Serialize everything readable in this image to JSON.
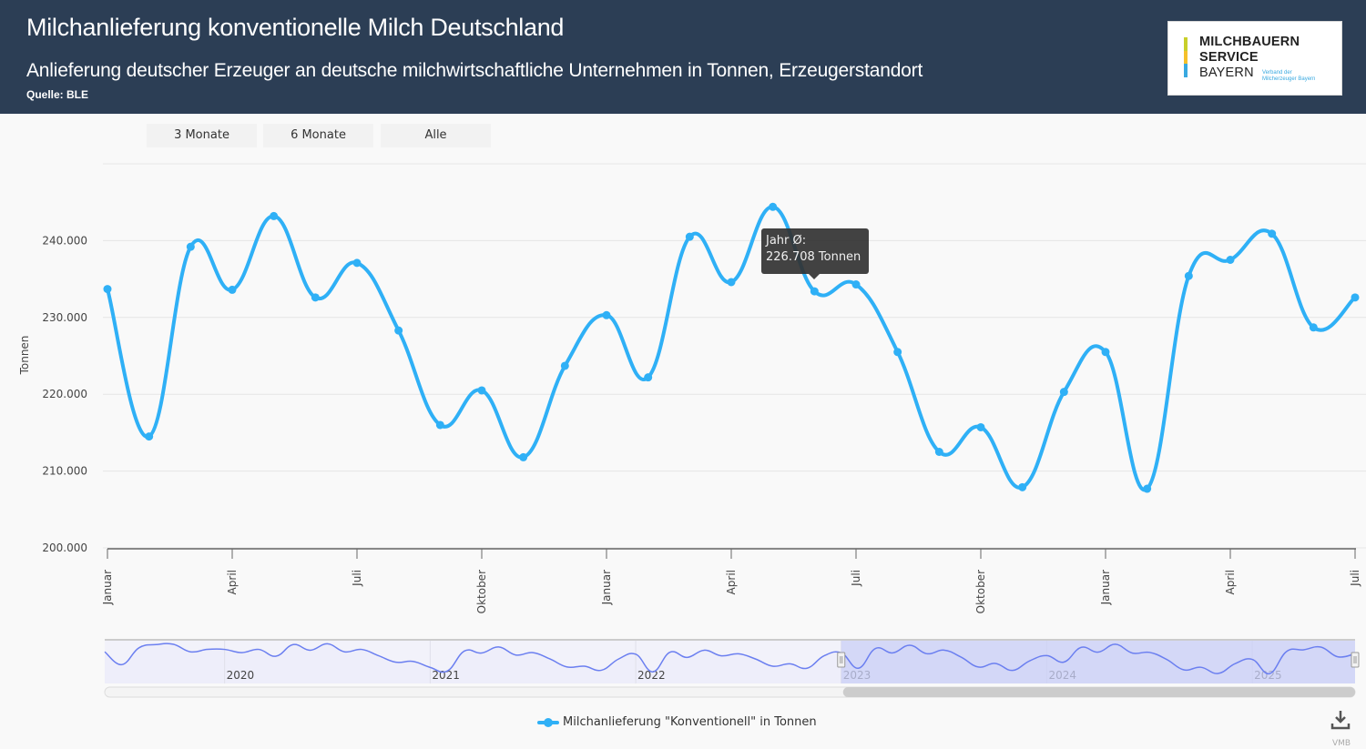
{
  "header": {
    "title": "Milchanlieferung konventionelle Milch Deutschland",
    "subtitle": "Anlieferung deutscher Erzeuger an deutsche milchwirtschaftliche Unternehmen in Tonnen, Erzeugerstandort",
    "source": "Quelle: BLE"
  },
  "logo": {
    "lines": [
      "MILCHBAUERN",
      "SERVICE",
      "BAYERN"
    ],
    "tagline": [
      "Verband der",
      "Milcherzeuger Bayern"
    ],
    "colors": [
      "#c8cf2a",
      "#f5c02a",
      "#39a9e0"
    ]
  },
  "range_selector": {
    "buttons": [
      "3 Monate",
      "6 Monate",
      "Alle"
    ]
  },
  "tooltip": {
    "line1": "Jahr Ø:",
    "line2": "226.708 Tonnen"
  },
  "legend": {
    "label": "Milchanlieferung \"Konventionell\" in Tonnen"
  },
  "export": {
    "icon": "download-icon",
    "credit": "VMB"
  },
  "colors": {
    "series": "#2fb0f6",
    "navigator_line": "#6b7ff0",
    "navigator_mask": "#c9cff6",
    "header_bg": "#2c3e55"
  },
  "chart_data": {
    "type": "line",
    "title": "Milchanlieferung konventionelle Milch Deutschland",
    "ylabel": "Tonnen",
    "ylim": [
      200000,
      250000
    ],
    "yticks": [
      200000,
      210000,
      220000,
      230000,
      240000
    ],
    "ytick_labels": [
      "200.000",
      "210.000",
      "220.000",
      "230.000",
      "240.000"
    ],
    "grid": true,
    "legend_position": "bottom-center",
    "x_range": [
      "2023-01",
      "2025-07"
    ],
    "xticks": [
      {
        "month": "2023-01",
        "label": "Januar"
      },
      {
        "month": "2023-04",
        "label": "April"
      },
      {
        "month": "2023-07",
        "label": "Juli"
      },
      {
        "month": "2023-10",
        "label": "Oktober"
      },
      {
        "month": "2024-01",
        "label": "Januar"
      },
      {
        "month": "2024-04",
        "label": "April"
      },
      {
        "month": "2024-07",
        "label": "Juli"
      },
      {
        "month": "2024-10",
        "label": "Oktober"
      },
      {
        "month": "2025-01",
        "label": "Januar"
      },
      {
        "month": "2025-04",
        "label": "April"
      },
      {
        "month": "2025-07",
        "label": "Juli"
      }
    ],
    "series": [
      {
        "name": "Milchanlieferung \"Konventionell\" in Tonnen",
        "x": [
          "2023-01",
          "2023-02",
          "2023-03",
          "2023-04",
          "2023-05",
          "2023-06",
          "2023-07",
          "2023-08",
          "2023-09",
          "2023-10",
          "2023-11",
          "2023-12",
          "2024-01",
          "2024-02",
          "2024-03",
          "2024-04",
          "2024-05",
          "2024-06",
          "2024-07",
          "2024-08",
          "2024-09",
          "2024-10",
          "2024-11",
          "2024-12",
          "2025-01",
          "2025-02",
          "2025-03",
          "2025-04",
          "2025-05",
          "2025-06",
          "2025-07"
        ],
        "values": [
          233700,
          214500,
          239200,
          233600,
          243200,
          232600,
          237100,
          228300,
          216000,
          220500,
          211800,
          223700,
          230300,
          222200,
          240500,
          234600,
          244400,
          233400,
          234300,
          225500,
          212500,
          215700,
          207900,
          220300,
          225500,
          207700,
          235400,
          237500,
          240900,
          228700,
          232600
        ]
      }
    ],
    "navigator": {
      "year_labels": [
        "2020",
        "2021",
        "2022",
        "2023",
        "2024",
        "2025"
      ],
      "selected_range": [
        "2023-01",
        "2025-07"
      ],
      "x_range": [
        "2019-06",
        "2025-07"
      ],
      "values_2019_06_to_2022_12": [
        235000,
        219000,
        240000,
        244000,
        244500,
        235000,
        238000,
        238000,
        234000,
        238000,
        229500,
        244000,
        237000,
        245000,
        235000,
        238000,
        230000,
        222000,
        223000,
        215500,
        211000,
        236000,
        233500,
        241000,
        231000,
        234000,
        226000,
        216000,
        217000,
        212000,
        226000,
        232000,
        210000,
        234500,
        228000,
        237000,
        230000,
        232500,
        226000,
        217000,
        220000,
        214500,
        230000
      ]
    }
  }
}
